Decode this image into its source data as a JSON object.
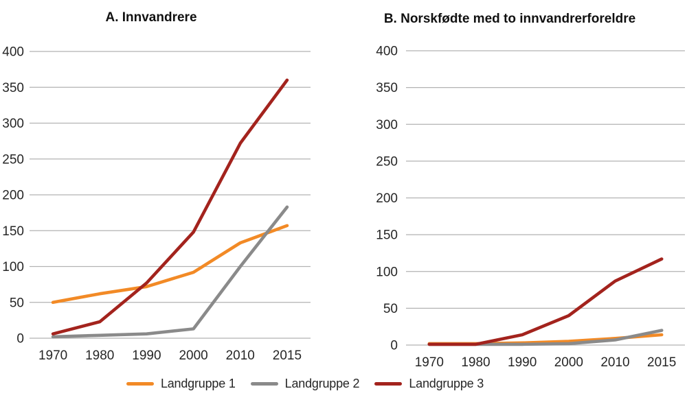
{
  "page": {
    "background": "#ffffff"
  },
  "colors": {
    "grid": "#b2b2b2",
    "axis_text": "#262626",
    "title_text": "#111111",
    "landgruppe1": "#f28a26",
    "landgruppe2": "#8a8a8a",
    "landgruppe3": "#a3231d"
  },
  "legend": {
    "position": "bottom-center",
    "items": [
      {
        "label": "Landgruppe 1",
        "color": "#f28a26"
      },
      {
        "label": "Landgruppe 2",
        "color": "#8a8a8a"
      },
      {
        "label": "Landgruppe 3",
        "color": "#a3231d"
      }
    ]
  },
  "chart_data": [
    {
      "type": "line",
      "title": "A. Innvandrere",
      "categories": [
        "1970",
        "1980",
        "1990",
        "2000",
        "2010",
        "2015"
      ],
      "series": [
        {
          "name": "Landgruppe 1",
          "color": "#f28a26",
          "values": [
            50,
            62,
            72,
            92,
            133,
            157
          ]
        },
        {
          "name": "Landgruppe 2",
          "color": "#8a8a8a",
          "values": [
            2,
            4,
            6,
            13,
            100,
            183
          ]
        },
        {
          "name": "Landgruppe 3",
          "color": "#a3231d",
          "values": [
            6,
            23,
            77,
            148,
            272,
            360
          ]
        }
      ],
      "ylim": [
        0,
        400
      ],
      "yticks": [
        0,
        50,
        100,
        150,
        200,
        250,
        300,
        350,
        400
      ],
      "grid": true,
      "legend_position": "bottom"
    },
    {
      "type": "line",
      "title": "B. Norskfødte med to innvandrerforeldre",
      "categories": [
        "1970",
        "1980",
        "1990",
        "2000",
        "2010",
        "2015"
      ],
      "series": [
        {
          "name": "Landgruppe 1",
          "color": "#f28a26",
          "values": [
            2,
            2,
            3,
            5,
            9,
            14
          ]
        },
        {
          "name": "Landgruppe 2",
          "color": "#8a8a8a",
          "values": [
            1,
            1,
            1,
            2,
            7,
            20
          ]
        },
        {
          "name": "Landgruppe 3",
          "color": "#a3231d",
          "values": [
            1,
            1,
            14,
            40,
            87,
            117
          ]
        }
      ],
      "ylim": [
        0,
        400
      ],
      "yticks": [
        0,
        50,
        100,
        150,
        200,
        250,
        300,
        350,
        400
      ],
      "grid": true,
      "legend_position": "bottom"
    }
  ]
}
